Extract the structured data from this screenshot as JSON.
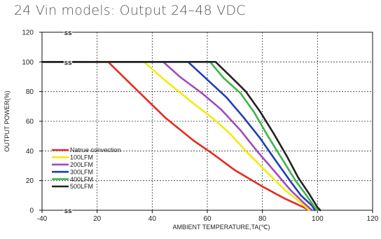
{
  "chart_data": {
    "type": "line",
    "title": "24 Vin models: Output 24–48 VDC",
    "xlabel": "AMBIENT TEMPERATURE,TA(℃)",
    "ylabel": "OUTPUT POWER(%)",
    "xlim": [
      -40,
      120
    ],
    "ylim": [
      0,
      120
    ],
    "x_ticks": [
      -40,
      20,
      40,
      60,
      80,
      100,
      120
    ],
    "y_ticks": [
      0,
      20,
      40,
      60,
      80,
      100,
      120
    ],
    "grid": "dashed",
    "axis_break_mark": "⊸",
    "legend_position": "lower-left",
    "series": [
      {
        "name": "Natrue convection",
        "color": "#e52b20",
        "points": [
          [
            -40,
            100
          ],
          [
            24,
            100
          ],
          [
            35,
            80
          ],
          [
            45,
            62
          ],
          [
            55,
            47
          ],
          [
            62,
            38
          ],
          [
            70,
            27
          ],
          [
            80,
            16
          ],
          [
            88,
            8
          ],
          [
            95,
            2
          ],
          [
            97,
            0
          ]
        ]
      },
      {
        "name": "100LFM",
        "color": "#f2ea0f",
        "points": [
          [
            -40,
            100
          ],
          [
            37,
            100
          ],
          [
            45,
            87
          ],
          [
            55,
            72
          ],
          [
            62,
            62
          ],
          [
            68,
            52
          ],
          [
            75,
            38
          ],
          [
            82,
            25
          ],
          [
            88,
            14
          ],
          [
            94,
            5
          ],
          [
            97,
            0
          ]
        ]
      },
      {
        "name": "200LFM",
        "color": "#a04bbd",
        "points": [
          [
            -40,
            100
          ],
          [
            44,
            100
          ],
          [
            50,
            90
          ],
          [
            58,
            79
          ],
          [
            65,
            68
          ],
          [
            72,
            54
          ],
          [
            78,
            40
          ],
          [
            85,
            25
          ],
          [
            90,
            14
          ],
          [
            95,
            5
          ],
          [
            98,
            0
          ]
        ]
      },
      {
        "name": "300LFM",
        "color": "#1f3fb3",
        "points": [
          [
            -40,
            100
          ],
          [
            53,
            100
          ],
          [
            60,
            88
          ],
          [
            67,
            76
          ],
          [
            73,
            63
          ],
          [
            79,
            49
          ],
          [
            85,
            33
          ],
          [
            90,
            20
          ],
          [
            94,
            10
          ],
          [
            98,
            3
          ],
          [
            99,
            0
          ]
        ]
      },
      {
        "name": "400LFM",
        "color": "#3fb44a",
        "points": [
          [
            -40,
            100
          ],
          [
            61,
            100
          ],
          [
            66,
            89
          ],
          [
            72,
            79
          ],
          [
            77,
            66
          ],
          [
            82,
            50
          ],
          [
            87,
            35
          ],
          [
            92,
            20
          ],
          [
            96,
            10
          ],
          [
            99,
            2
          ],
          [
            100,
            0
          ]
        ]
      },
      {
        "name": "500LFM",
        "color": "#222222",
        "points": [
          [
            -40,
            100
          ],
          [
            63,
            100
          ],
          [
            68,
            91
          ],
          [
            74,
            80
          ],
          [
            79,
            67
          ],
          [
            84,
            52
          ],
          [
            89,
            36
          ],
          [
            93,
            22
          ],
          [
            97,
            11
          ],
          [
            100,
            2
          ],
          [
            101,
            0
          ]
        ]
      }
    ]
  }
}
